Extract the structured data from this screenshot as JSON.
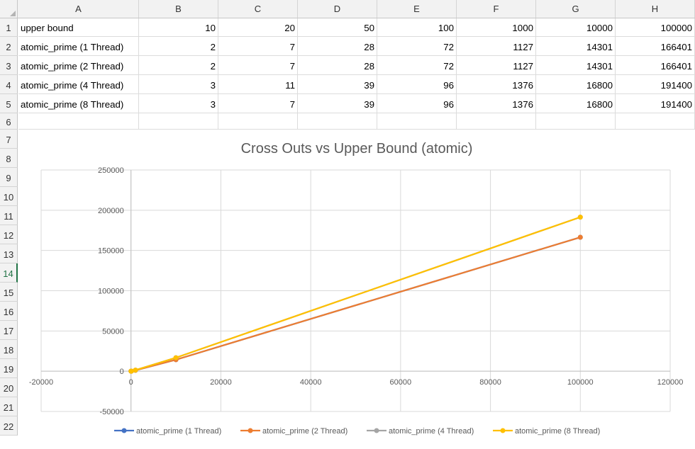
{
  "columns": [
    "A",
    "B",
    "C",
    "D",
    "E",
    "F",
    "G",
    "H"
  ],
  "rows": [
    "1",
    "2",
    "3",
    "4",
    "5",
    "6",
    "7",
    "8",
    "9",
    "10",
    "11",
    "12",
    "13",
    "14",
    "15",
    "16",
    "17",
    "18",
    "19",
    "20",
    "21",
    "22"
  ],
  "table": [
    [
      "upper bound",
      "10",
      "20",
      "50",
      "100",
      "1000",
      "10000",
      "100000"
    ],
    [
      "atomic_prime (1 Thread)",
      "2",
      "7",
      "28",
      "72",
      "1127",
      "14301",
      "166401"
    ],
    [
      "atomic_prime (2 Thread)",
      "2",
      "7",
      "28",
      "72",
      "1127",
      "14301",
      "166401"
    ],
    [
      "atomic_prime (4 Thread)",
      "3",
      "11",
      "39",
      "96",
      "1376",
      "16800",
      "191400"
    ],
    [
      "atomic_prime (8 Thread)",
      "3",
      "7",
      "39",
      "96",
      "1376",
      "16800",
      "191400"
    ]
  ],
  "chart_data": {
    "type": "scatter",
    "title": "Cross Outs vs Upper Bound (atomic)",
    "xlabel": "",
    "ylabel": "",
    "xlim": [
      -20000,
      120000
    ],
    "ylim": [
      -50000,
      250000
    ],
    "x_ticks": [
      "-20000",
      "0",
      "20000",
      "40000",
      "60000",
      "80000",
      "100000",
      "120000"
    ],
    "y_ticks": [
      "-50000",
      "0",
      "50000",
      "100000",
      "150000",
      "200000",
      "250000"
    ],
    "grid": true,
    "legend": "bottom",
    "x": [
      10,
      20,
      50,
      100,
      1000,
      10000,
      100000
    ],
    "series": [
      {
        "name": "atomic_prime (1 Thread)",
        "color": "#4472c4",
        "values": [
          2,
          7,
          28,
          72,
          1127,
          14301,
          166401
        ]
      },
      {
        "name": "atomic_prime (2 Thread)",
        "color": "#ed7d31",
        "values": [
          2,
          7,
          28,
          72,
          1127,
          14301,
          166401
        ]
      },
      {
        "name": "atomic_prime (4 Thread)",
        "color": "#a5a5a5",
        "values": [
          3,
          11,
          39,
          96,
          1376,
          16800,
          191400
        ]
      },
      {
        "name": "atomic_prime (8 Thread)",
        "color": "#ffc000",
        "values": [
          3,
          7,
          39,
          96,
          1376,
          16800,
          191400
        ]
      }
    ]
  }
}
